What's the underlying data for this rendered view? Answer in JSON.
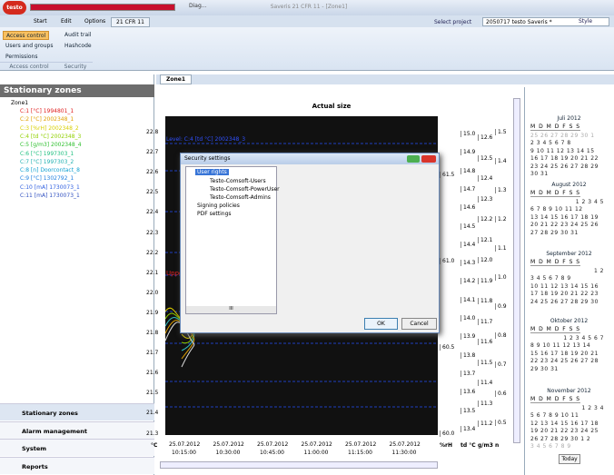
{
  "window": {
    "logo": "testo",
    "taskbar_item": "Diag...",
    "title": "Saveris 21 CFR 11 - [Zone1]"
  },
  "ribbon": {
    "tabs": [
      "Start",
      "Edit",
      "Options",
      "21 CFR 11"
    ],
    "select_project_label": "Select project",
    "project": "2050717 testo Saveris *",
    "style": "Style",
    "groups": [
      {
        "label": "Access control",
        "buttons": [
          "Access control",
          "Users and groups",
          "Permissions"
        ]
      },
      {
        "label": "Security",
        "buttons": [
          "Audit trail",
          "Hashcode"
        ]
      }
    ]
  },
  "sidebar": {
    "title": "Stationary zones",
    "tree_root": "Zone1",
    "channels": [
      {
        "label": "C:1 [°C] 1994801_1",
        "color": "#e02020"
      },
      {
        "label": "C:2 [°C] 2002348_1",
        "color": "#e0a000"
      },
      {
        "label": "C:3 [%rH] 2002348_2",
        "color": "#d8d000"
      },
      {
        "label": "C:4 [td °C] 2002348_3",
        "color": "#90d000"
      },
      {
        "label": "C:5 [g/m3] 2002348_4",
        "color": "#30c030"
      },
      {
        "label": "C:6 [°C] 1997303_1",
        "color": "#20c080"
      },
      {
        "label": "C:7 [°C] 1997303_2",
        "color": "#20b0b0"
      },
      {
        "label": "C:8 [n] Doorcontact_8",
        "color": "#10a0d0"
      },
      {
        "label": "C:9 [°C] 1302792_1",
        "color": "#2080e0"
      },
      {
        "label": "C:10 [mA] 1730073_1",
        "color": "#3060e0"
      },
      {
        "label": "C:11 [mA] 1730073_1",
        "color": "#3050c0"
      }
    ],
    "nav": [
      "Stationary zones",
      "Alarm management",
      "System",
      "Reports"
    ]
  },
  "document": {
    "tab": "Zone1",
    "chart_title": "Actual size",
    "overlay_level": "Level: C:4 [td °C] 2002348_3",
    "overlay_upper": "Uppe",
    "y_labels": [
      "22.8",
      "22.7",
      "22.6",
      "22.5",
      "22.4",
      "22.3",
      "22.2",
      "22.1",
      "22.0",
      "21.9",
      "21.8",
      "21.7",
      "21.6",
      "21.5",
      "21.4",
      "21.3"
    ],
    "y_unit": "°C",
    "x_labels": [
      {
        "date": "25.07.2012",
        "time": "10:15:00"
      },
      {
        "date": "25.07.2012",
        "time": "10:30:00"
      },
      {
        "date": "25.07.2012",
        "time": "10:45:00"
      },
      {
        "date": "25.07.2012",
        "time": "11:00:00"
      },
      {
        "date": "25.07.2012",
        "time": "11:15:00"
      },
      {
        "date": "25.07.2012",
        "time": "11:30:00"
      }
    ],
    "right_axes": [
      {
        "unit": "%rH",
        "labels": [
          "61.5",
          "61.0",
          "60.5",
          "60.0"
        ]
      },
      {
        "unit": "td °C",
        "labels": [
          "15.0",
          "14.9",
          "14.8",
          "14.7",
          "14.6",
          "14.5",
          "14.4",
          "14.3",
          "14.2",
          "14.1",
          "14.0",
          "13.9",
          "13.8",
          "13.7",
          "13.6",
          "13.5",
          "13.4"
        ]
      },
      {
        "unit": "g/m3",
        "labels": [
          "12.6",
          "12.5",
          "12.4",
          "12.3",
          "12.2",
          "12.1",
          "12.0",
          "11.9",
          "11.8",
          "11.7",
          "11.6",
          "11.5",
          "11.4",
          "11.3",
          "11.2"
        ]
      },
      {
        "unit": "n",
        "labels": [
          "1.5",
          "1.4",
          "1.3",
          "1.2",
          "1.1",
          "1.0",
          "0.9",
          "0.8",
          "0.7",
          "0.6",
          "0.5"
        ]
      }
    ]
  },
  "dialog": {
    "title": "Security settings",
    "tree": [
      "User rights",
      "Testo-Comsoft-Users",
      "Testo-Comsoft-PowerUser",
      "Testo-Comsoft-Admins",
      "Signing policies",
      "PDF settings"
    ],
    "scroll_grip": "III",
    "ok": "OK",
    "cancel": "Cancel"
  },
  "calendar": {
    "weekdays": "M D M D F S S",
    "months": [
      {
        "title": "Juli 2012",
        "weeks": [
          "25 26 27 28 29 30 1",
          "2 3 4 5 6 7 8",
          "9 10 11 12 13 14 15",
          "16 17 18 19 20 21 22",
          "23 24 25 26 27 28 29",
          "30 31"
        ]
      },
      {
        "title": "August 2012",
        "weeks": [
          "1 2 3 4 5",
          "6 7 8 9 10 11 12",
          "13 14 15 16 17 18 19",
          "20 21 22 23 24 25 26",
          "27 28 29 30 31"
        ]
      },
      {
        "title": "September 2012",
        "weeks": [
          "1 2",
          "3 4 5 6 7 8 9",
          "10 11 12 13 14 15 16",
          "17 18 19 20 21 22 23",
          "24 25 26 27 28 29 30"
        ]
      },
      {
        "title": "Oktober 2012",
        "weeks": [
          "1 2 3 4 5 6 7",
          "8 9 10 11 12 13 14",
          "15 16 17 18 19 20 21",
          "22 23 24 25 26 27 28",
          "29 30 31"
        ]
      },
      {
        "title": "November 2012",
        "weeks": [
          "1 2 3 4",
          "5 6 7 8 9 10 11",
          "12 13 14 15 16 17 18",
          "19 20 21 22 23 24 25",
          "26 27 28 29 30 1 2",
          "3 4 5 6 7 8 9"
        ]
      }
    ],
    "today": "Today"
  }
}
